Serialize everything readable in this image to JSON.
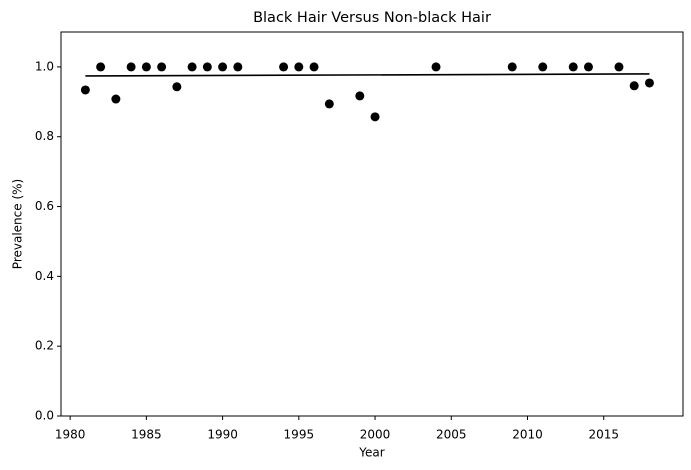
{
  "chart_data": {
    "type": "scatter",
    "title": "Black Hair Versus Non-black Hair",
    "x_label": "Year",
    "y_label": "Prevalence (%)",
    "x": [
      1981,
      1982,
      1983,
      1984,
      1985,
      1986,
      1987,
      1988,
      1989,
      1990,
      1991,
      1994,
      1995,
      1996,
      1997,
      1999,
      2000,
      2004,
      2009,
      2011,
      2013,
      2014,
      2016,
      2017,
      2018
    ],
    "values": [
      0.934,
      1.0,
      0.908,
      1.0,
      1.0,
      1.0,
      0.943,
      1.0,
      1.0,
      1.0,
      1.0,
      1.0,
      1.0,
      1.0,
      0.894,
      0.917,
      0.857,
      1.0,
      1.0,
      1.0,
      1.0,
      1.0,
      1.0,
      0.946,
      0.954
    ],
    "color": "#000000",
    "trend": {
      "x": [
        1981,
        2018
      ],
      "values": [
        0.974,
        0.98
      ],
      "color": "#000000"
    },
    "xlim": [
      1979.4,
      2020.2
    ],
    "xticks": [
      1980,
      1985,
      1990,
      1995,
      2000,
      2005,
      2010,
      2015
    ],
    "ylim": [
      0,
      1.1
    ],
    "yticks": [
      {
        "value": 0,
        "label": "0.0"
      },
      0.2,
      0.4,
      0.6,
      0.8,
      {
        "value": 1,
        "label": "1.0"
      }
    ],
    "grid": false
  }
}
